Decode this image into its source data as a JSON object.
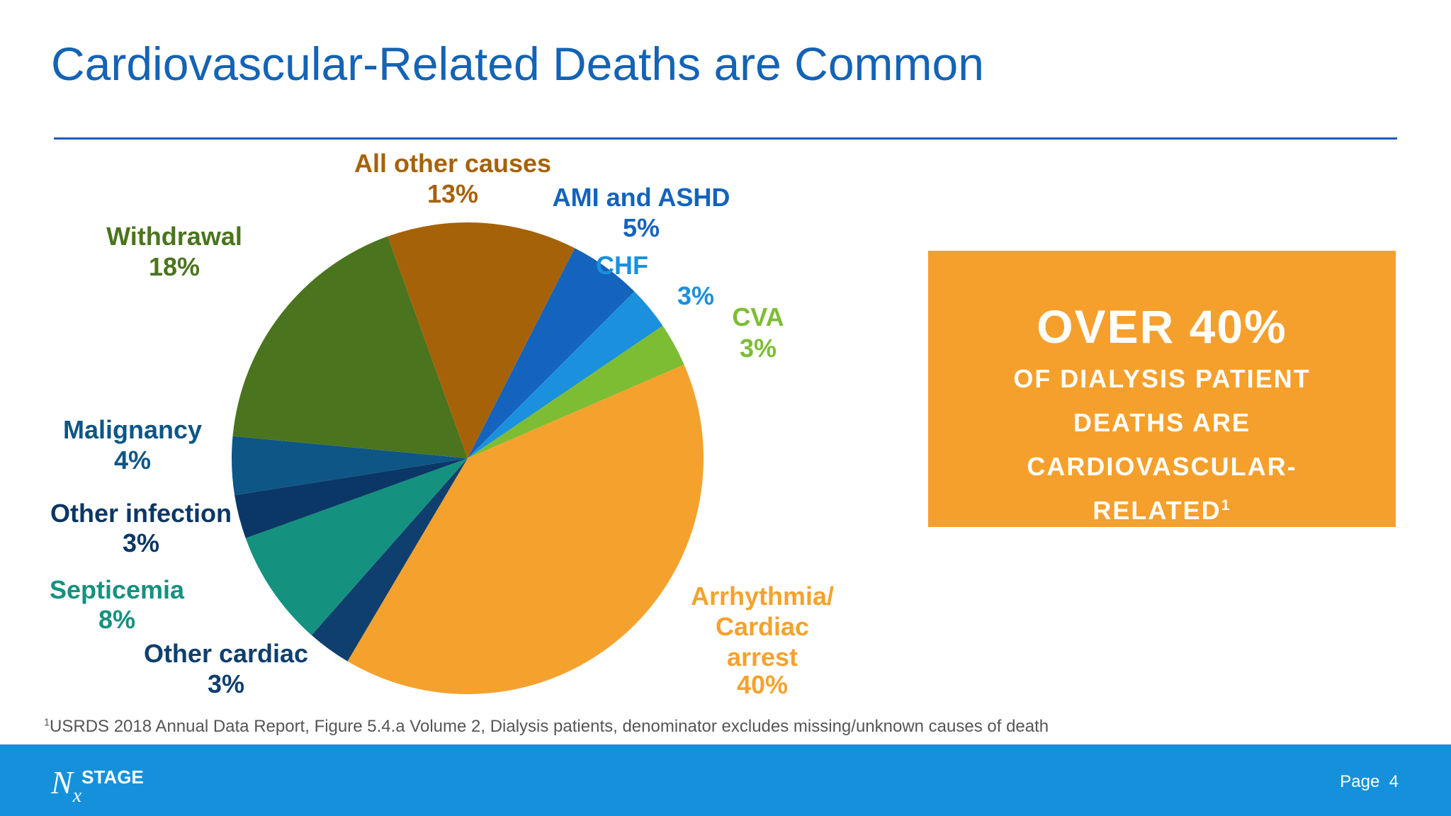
{
  "title": "Cardiovascular-Related Deaths are Common",
  "chart_data": {
    "type": "pie",
    "categories": [
      "AMI and ASHD",
      "CHF",
      "CVA",
      "Arrhythmia/\nCardiac\narrest",
      "Other cardiac",
      "Septicemia",
      "Other infection",
      "Malignancy",
      "Withdrawal",
      "All other causes"
    ],
    "values": [
      5,
      3,
      3,
      40,
      3,
      8,
      3,
      4,
      18,
      13
    ],
    "value_labels": [
      "5%",
      "3%",
      "3%",
      "40%",
      "3%",
      "8%",
      "3%",
      "4%",
      "18%",
      "13%"
    ],
    "colors": [
      "#1463bd",
      "#1b90dc",
      "#7dbd34",
      "#f4a22d",
      "#0f3f6e",
      "#15917f",
      "#0b3766",
      "#0d5686",
      "#4b741e",
      "#a66208"
    ]
  },
  "callout": {
    "headline": "OVER 40%",
    "text": "OF DIALYSIS PATIENT DEATHS ARE CARDIOVASCULAR-RELATED",
    "sup": "1"
  },
  "footnote": {
    "sup": "1",
    "text": "USRDS 2018 Annual Data Report, Figure 5.4.a Volume 2, Dialysis patients, denominator excludes missing/unknown causes of death"
  },
  "footer": {
    "logo_n": "N",
    "logo_x": "x",
    "logo_stage": "STAGE",
    "page_label": "Page",
    "page_number": "4"
  }
}
